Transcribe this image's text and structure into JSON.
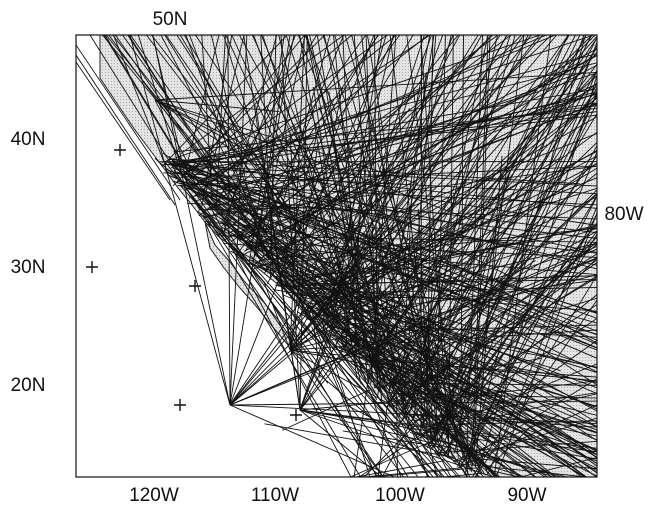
{
  "axes": {
    "top": "50N",
    "left": [
      "40N",
      "30N",
      "20N"
    ],
    "right": "80W",
    "bottom": [
      "120W",
      "110W",
      "100W",
      "90W"
    ]
  }
}
